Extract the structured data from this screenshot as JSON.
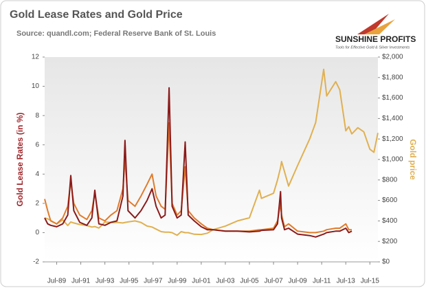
{
  "chart_data": {
    "type": "line",
    "title": "Gold Lease Rates and Gold Price",
    "subtitle": "Source: quandl.com; Federal Reserve Bank of St. Louis",
    "logo": "SUNSHINE PROFITS",
    "logo_tagline": "Tools for Effective Gold & Silver Investments",
    "y_label": "Gold Lease Rates (in %)",
    "y2_label": "Gold price",
    "x": [
      "1988-07",
      "1988-10",
      "1989-01",
      "1989-07",
      "1990-01",
      "1990-06",
      "1990-09",
      "1990-12",
      "1991-06",
      "1992-01",
      "1992-06",
      "1992-09",
      "1993-01",
      "1993-07",
      "1994-01",
      "1994-07",
      "1995-01",
      "1995-03",
      "1995-06",
      "1996-01",
      "1996-07",
      "1997-01",
      "1997-06",
      "1997-10",
      "1998-03",
      "1998-07",
      "1998-11",
      "1999-02",
      "1999-07",
      "1999-11",
      "2000-03",
      "2000-06",
      "2000-12",
      "2001-07",
      "2002-01",
      "2002-07",
      "2003-07",
      "2004-07",
      "2005-07",
      "2006-05",
      "2006-07",
      "2007-07",
      "2007-11",
      "2008-02",
      "2008-03",
      "2008-06",
      "2008-10",
      "2009-07",
      "2010-07",
      "2011-01",
      "2011-09",
      "2011-12",
      "2012-09",
      "2013-01",
      "2013-07",
      "2013-10",
      "2014-01",
      "2014-07",
      "2015-01",
      "2015-07",
      "2015-11",
      "2016-03"
    ],
    "series": [
      {
        "color": "#8b1a1a",
        "values": [
          1.0,
          0.6,
          0.5,
          0.4,
          0.6,
          1.2,
          3.9,
          1.5,
          0.7,
          0.5,
          1.0,
          2.9,
          0.6,
          0.5,
          0.7,
          0.8,
          2.5,
          6.3,
          1.5,
          1.0,
          1.5,
          2.2,
          3.0,
          1.8,
          1.0,
          1.2,
          9.9,
          1.8,
          1.0,
          1.2,
          6.2,
          1.2,
          0.8,
          0.4,
          0.2,
          0.2,
          0.1,
          0.1,
          0.05,
          0.1,
          0.15,
          0.2,
          0.6,
          2.8,
          1.0,
          0.2,
          0.3,
          -0.1,
          -0.2,
          -0.3,
          -0.1,
          0.0,
          0.1,
          0.1,
          0.3,
          0.0,
          0.1,
          null,
          null,
          null,
          null,
          null
        ]
      },
      {
        "color": "#e07b2a",
        "values": [
          2.3,
          1.5,
          0.8,
          0.6,
          1.0,
          1.8,
          3.5,
          2.0,
          1.2,
          0.9,
          1.5,
          2.7,
          1.0,
          0.8,
          1.2,
          1.5,
          3.0,
          5.0,
          2.2,
          1.8,
          2.5,
          3.3,
          4.0,
          2.5,
          1.8,
          1.6,
          7.5,
          2.0,
          1.2,
          1.5,
          4.5,
          1.5,
          1.0,
          0.6,
          0.3,
          0.2,
          0.1,
          0.1,
          0.1,
          0.2,
          0.2,
          0.3,
          0.8,
          2.0,
          1.2,
          0.4,
          0.6,
          0.1,
          0.0,
          0.0,
          0.1,
          0.2,
          0.3,
          0.3,
          0.6,
          0.2,
          0.2,
          null,
          null,
          null,
          null,
          null
        ]
      },
      {
        "color": "#e0b050",
        "axis": "y2",
        "values": [
          430,
          420,
          405,
          370,
          410,
          355,
          390,
          380,
          365,
          355,
          340,
          345,
          330,
          390,
          385,
          385,
          380,
          385,
          390,
          400,
          385,
          350,
          340,
          320,
          295,
          290,
          290,
          285,
          260,
          295,
          285,
          285,
          270,
          268,
          280,
          315,
          350,
          400,
          430,
          700,
          620,
          670,
          800,
          920,
          980,
          880,
          740,
          940,
          1200,
          1360,
          1880,
          1620,
          1760,
          1680,
          1280,
          1320,
          1250,
          1310,
          1270,
          1100,
          1070,
          1260
        ]
      }
    ],
    "xlim": [
      "1988-07",
      "2016-03"
    ],
    "xticks": [
      {
        "value": "1989-07",
        "label": "Jul-89"
      },
      {
        "value": "1991-07",
        "label": "Jul-91"
      },
      {
        "value": "1993-07",
        "label": "Jul-93"
      },
      {
        "value": "1995-07",
        "label": "Jul-95"
      },
      {
        "value": "1997-07",
        "label": "Jul-97"
      },
      {
        "value": "1999-07",
        "label": "Jul-99"
      },
      {
        "value": "2001-07",
        "label": "Jul-01"
      },
      {
        "value": "2003-07",
        "label": "Jul-03"
      },
      {
        "value": "2005-07",
        "label": "Jul-05"
      },
      {
        "value": "2007-07",
        "label": "Jul-07"
      },
      {
        "value": "2009-07",
        "label": "Jul-09"
      },
      {
        "value": "2011-07",
        "label": "Jul-11"
      },
      {
        "value": "2013-07",
        "label": "Jul-13"
      },
      {
        "value": "2015-07",
        "label": "Jul-15"
      }
    ],
    "ylim": [
      -2,
      12
    ],
    "yticks": [
      -2,
      0,
      2,
      4,
      6,
      8,
      10,
      12
    ],
    "y2lim": [
      0,
      2000
    ],
    "y2ticks": [
      {
        "value": 0,
        "label": "$0"
      },
      {
        "value": 200,
        "label": "$200"
      },
      {
        "value": 400,
        "label": "$400"
      },
      {
        "value": 600,
        "label": "$600"
      },
      {
        "value": 800,
        "label": "$800"
      },
      {
        "value": 1000,
        "label": "$1,000"
      },
      {
        "value": 1200,
        "label": "$1,200"
      },
      {
        "value": 1400,
        "label": "$1,400"
      },
      {
        "value": 1600,
        "label": "$1,600"
      },
      {
        "value": 1800,
        "label": "$1,800"
      },
      {
        "value": 2000,
        "label": "$2,000"
      }
    ],
    "grid": false
  }
}
